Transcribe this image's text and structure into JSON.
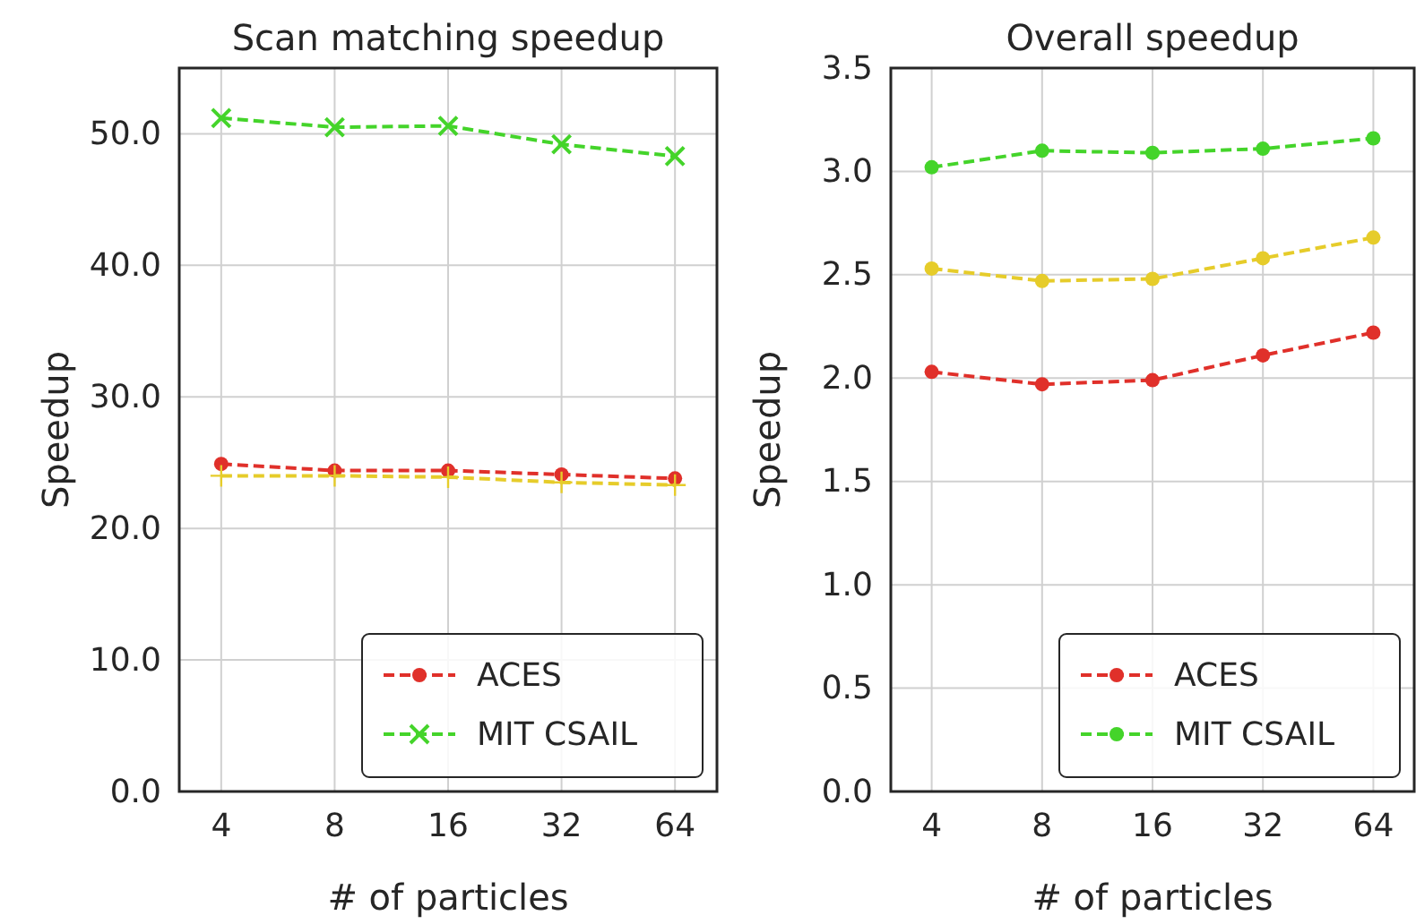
{
  "chart_data": [
    {
      "type": "line",
      "title": "Scan matching speedup",
      "xlabel": "# of particles",
      "ylabel": "Speedup",
      "categories": [
        "4",
        "8",
        "16",
        "32",
        "64"
      ],
      "ylim": [
        0,
        55
      ],
      "yticks": [
        {
          "value": 0,
          "label": "0.0"
        },
        {
          "value": 10,
          "label": "10.0"
        },
        {
          "value": 20,
          "label": "20.0"
        },
        {
          "value": 30,
          "label": "30.0"
        },
        {
          "value": 40,
          "label": "40.0"
        },
        {
          "value": 50,
          "label": "50.0"
        }
      ],
      "grid": true,
      "legend": "bottom right",
      "line_style": "dashed",
      "series": [
        {
          "name": "ACES",
          "color": "#e0302a",
          "marker": "circle",
          "values": [
            24.9,
            24.4,
            24.4,
            24.1,
            23.8
          ]
        },
        {
          "color": "#e6cc2a",
          "marker": "plus",
          "values": [
            24.0,
            24.0,
            23.9,
            23.5,
            23.3
          ]
        },
        {
          "name": "MIT CSAIL",
          "color": "#44d42a",
          "marker": "cross",
          "values": [
            51.2,
            50.5,
            50.6,
            49.2,
            48.3
          ]
        }
      ]
    },
    {
      "type": "line",
      "title": "Overall speedup",
      "xlabel": "# of particles",
      "ylabel": "Speedup",
      "categories": [
        "4",
        "8",
        "16",
        "32",
        "64"
      ],
      "ylim": [
        0,
        3.5
      ],
      "yticks": [
        {
          "value": 0,
          "label": "0.0"
        },
        {
          "value": 0.5,
          "label": "0.5"
        },
        {
          "value": 1,
          "label": "1.0"
        },
        {
          "value": 1.5,
          "label": "1.5"
        },
        {
          "value": 2,
          "label": "2.0"
        },
        {
          "value": 2.5,
          "label": "2.5"
        },
        {
          "value": 3,
          "label": "3.0"
        },
        {
          "value": 3.5,
          "label": "3.5"
        }
      ],
      "grid": true,
      "legend": "bottom right",
      "line_style": "dashed",
      "marker": "circle",
      "series": [
        {
          "name": "ACES",
          "color": "#e0302a",
          "values": [
            2.03,
            1.97,
            1.99,
            2.11,
            2.22
          ]
        },
        {
          "color": "#e6cc2a",
          "values": [
            2.53,
            2.47,
            2.48,
            2.58,
            2.68
          ]
        },
        {
          "name": "MIT CSAIL",
          "color": "#44d42a",
          "values": [
            3.02,
            3.1,
            3.09,
            3.11,
            3.16
          ]
        }
      ]
    }
  ]
}
